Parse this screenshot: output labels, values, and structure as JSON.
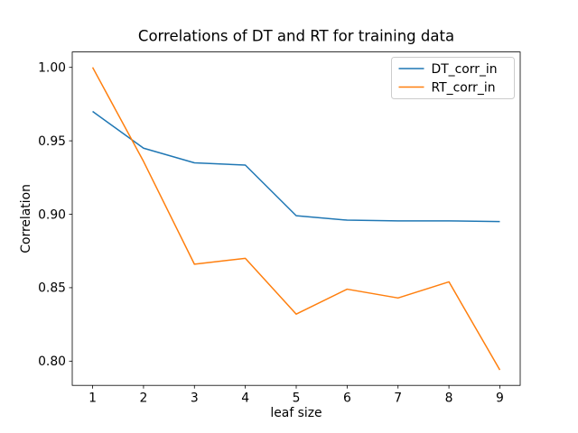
{
  "figure": {
    "background": "#ffffff"
  },
  "chart_data": {
    "type": "line",
    "title": "Correlations of DT and RT for training data",
    "xlabel": "leaf size",
    "ylabel": "Correlation",
    "x": [
      1,
      2,
      3,
      4,
      5,
      6,
      7,
      8,
      9
    ],
    "series": [
      {
        "name": "DT_corr_in",
        "color": "#1f77b4",
        "values": [
          0.97,
          0.945,
          0.935,
          0.9335,
          0.899,
          0.896,
          0.8955,
          0.8955,
          0.895
        ]
      },
      {
        "name": "RT_corr_in",
        "color": "#ff7f0e",
        "values": [
          1.0,
          0.936,
          0.866,
          0.87,
          0.832,
          0.849,
          0.843,
          0.854,
          0.794
        ]
      }
    ],
    "xlim": [
      0.6,
      9.4
    ],
    "ylim": [
      0.7835,
      1.0105
    ],
    "xticks": {
      "values": [
        1,
        2,
        3,
        4,
        5,
        6,
        7,
        8,
        9
      ],
      "labels": [
        "1",
        "2",
        "3",
        "4",
        "5",
        "6",
        "7",
        "8",
        "9"
      ]
    },
    "yticks": {
      "values": [
        0.8,
        0.85,
        0.9,
        0.95,
        1.0
      ],
      "labels": [
        "0.80",
        "0.85",
        "0.90",
        "0.95",
        "1.00"
      ]
    },
    "grid": false,
    "legend": {
      "position": "upper right",
      "entries": [
        "DT_corr_in",
        "RT_corr_in"
      ]
    },
    "line_width": 1.5,
    "axis_color": "#000000",
    "legend_border_color": "#cccccc"
  }
}
